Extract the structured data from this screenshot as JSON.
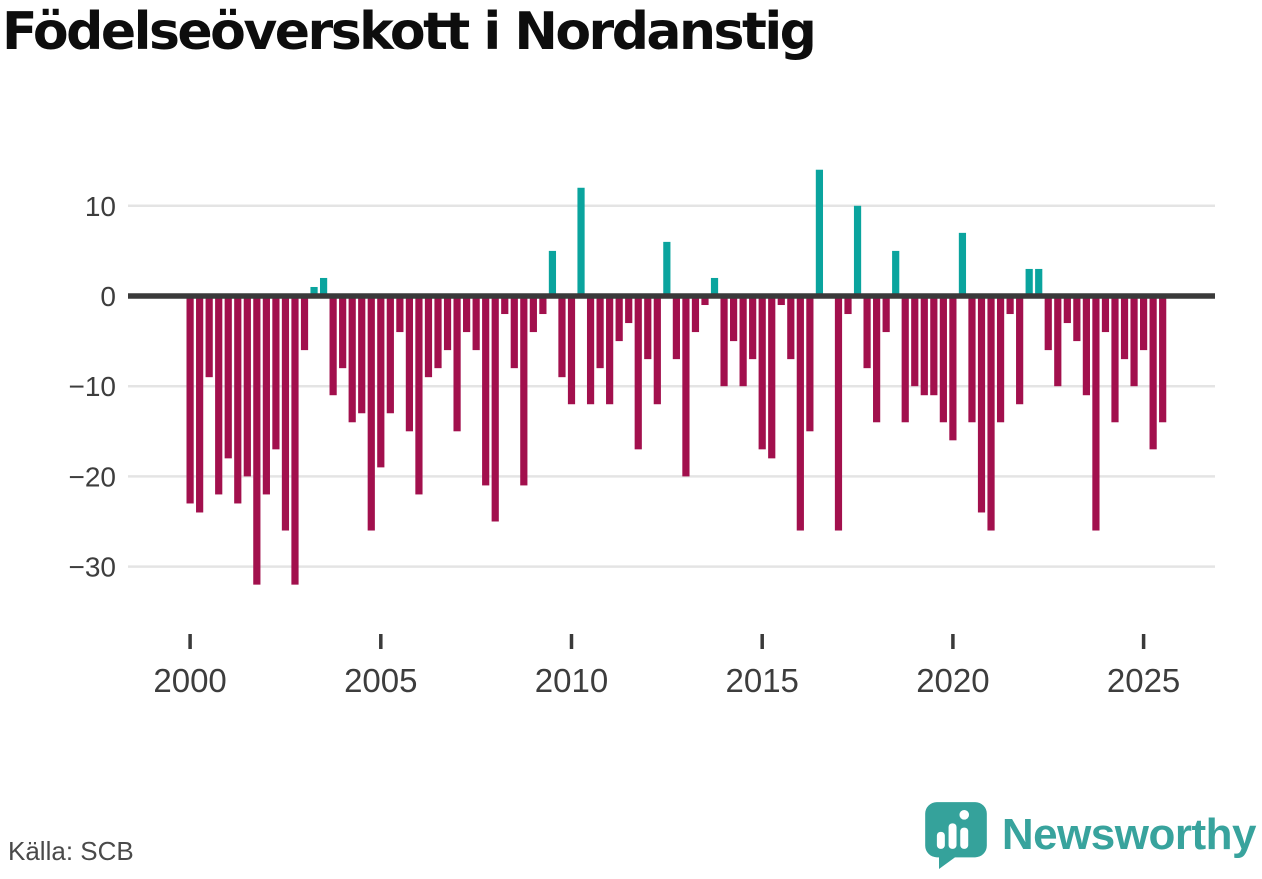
{
  "title": "Födelseöverskott i Nordanstig",
  "source": "Källa: SCB",
  "logo": {
    "text": "Newsworthy",
    "icon": "bar-chart-speech-bubble"
  },
  "colors": {
    "negative_bar": "#a2104d",
    "positive_bar": "#0aa49e",
    "zero_line": "#3a3a3a",
    "gridline": "#e4e4e4",
    "axis_text": "#3d3d3d",
    "title_text": "#0d0d0d",
    "source_text": "#4a4a4a",
    "logo_teal": "#38a39d"
  },
  "chart_data": {
    "type": "bar",
    "title": "Födelseöverskott i Nordanstig",
    "xlabel": "",
    "ylabel": "",
    "frequency": "quarterly",
    "start_year": 2000,
    "start_quarter": 1,
    "ylim": [
      -34,
      16
    ],
    "grid": true,
    "legend": "none",
    "y_ticks": [
      10,
      0,
      -10,
      -20,
      -30
    ],
    "y_tick_labels": [
      "10",
      "0",
      "−10",
      "−20",
      "−30"
    ],
    "x_tick_years": [
      2000,
      2005,
      2010,
      2015,
      2020,
      2025
    ],
    "x_tick_labels": [
      "2000",
      "2005",
      "2010",
      "2015",
      "2020",
      "2025"
    ],
    "series": [
      {
        "name": "Födelseöverskott",
        "values": [
          -23,
          -24,
          -9,
          -22,
          -18,
          -23,
          -20,
          -32,
          -22,
          -17,
          -26,
          -32,
          -6,
          1,
          2,
          -11,
          -8,
          -14,
          -13,
          -26,
          -19,
          -13,
          -4,
          -15,
          -22,
          -9,
          -8,
          -6,
          -15,
          -4,
          -6,
          -21,
          -25,
          -2,
          -8,
          -21,
          -4,
          -2,
          5,
          -9,
          -12,
          12,
          -12,
          -8,
          -12,
          -5,
          -3,
          -17,
          -7,
          -12,
          6,
          -7,
          -20,
          -4,
          -1,
          2,
          -10,
          -5,
          -10,
          -7,
          -17,
          -18,
          -1,
          -7,
          -26,
          -15,
          14,
          0,
          -26,
          -2,
          10,
          -8,
          -14,
          -4,
          5,
          -14,
          -10,
          -11,
          -11,
          -14,
          -16,
          7,
          -14,
          -24,
          -26,
          -14,
          -2,
          -12,
          3,
          3,
          -6,
          -10,
          -3,
          -5,
          -11,
          -26,
          -4,
          -14,
          -7,
          -10,
          -6,
          -17,
          -14
        ]
      }
    ]
  }
}
